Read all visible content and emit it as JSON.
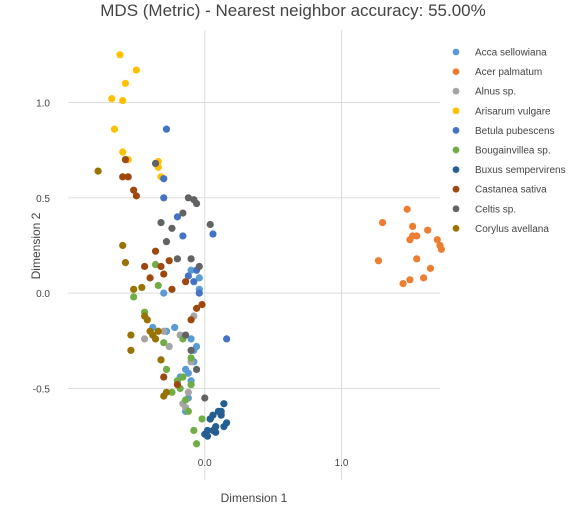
{
  "chart_data": {
    "type": "scatter",
    "title": "MDS (Metric) - Nearest neighbor accuracy: 55.00%",
    "xlabel": "Dimension 1",
    "ylabel": "Dimension 2",
    "xlim": [
      -1.0,
      1.72
    ],
    "ylim": [
      -0.98,
      1.38
    ],
    "xticks": [
      0.0,
      1.0
    ],
    "xtick_labels": [
      "0.0",
      "1.0"
    ],
    "yticks": [
      -0.5,
      0.0,
      0.5,
      1.0
    ],
    "ytick_labels": [
      "-0.5",
      "0.0",
      "0.5",
      "1.0"
    ],
    "grid": true,
    "legend_position": "right",
    "series": [
      {
        "name": "Acca sellowiana",
        "color": "#5b9bd5",
        "x": [
          -0.38,
          -0.32,
          -0.28,
          -0.22,
          -0.18,
          -0.14,
          -0.12,
          -0.1,
          -0.08,
          -0.06,
          -0.12,
          -0.14,
          -0.1,
          -0.08,
          -0.04,
          -0.1,
          -0.04,
          -0.3
        ],
        "y": [
          -0.18,
          -0.35,
          -0.2,
          -0.18,
          -0.44,
          -0.4,
          -0.42,
          -0.46,
          -0.36,
          -0.28,
          -0.55,
          -0.62,
          -0.24,
          -0.3,
          0.02,
          0.12,
          0.08,
          0.0
        ]
      },
      {
        "name": "Acer palmatum",
        "color": "#ed7d31",
        "x": [
          1.27,
          1.3,
          1.45,
          1.48,
          1.5,
          1.52,
          1.55,
          1.55,
          1.6,
          1.63,
          1.65,
          1.7,
          1.72,
          1.73,
          1.5,
          1.52
        ],
        "y": [
          0.17,
          0.37,
          0.05,
          0.44,
          0.28,
          0.35,
          0.3,
          0.18,
          0.08,
          0.33,
          0.13,
          0.28,
          0.25,
          0.23,
          0.07,
          0.3
        ]
      },
      {
        "name": "Alnus sp.",
        "color": "#a5a5a5",
        "x": [
          -0.44,
          -0.38,
          -0.3,
          -0.26,
          -0.2,
          -0.16,
          -0.14,
          -0.12,
          -0.1,
          -0.18,
          -0.08
        ],
        "y": [
          -0.24,
          -0.22,
          -0.2,
          -0.28,
          -0.46,
          -0.58,
          -0.6,
          -0.52,
          -0.36,
          -0.22,
          -0.12
        ]
      },
      {
        "name": "Arisarum vulgare",
        "color": "#ffc000",
        "x": [
          -0.68,
          -0.66,
          -0.62,
          -0.6,
          -0.58,
          -0.5,
          -0.6,
          -0.56,
          -0.34,
          -0.32,
          -0.34
        ],
        "y": [
          1.02,
          0.86,
          1.25,
          1.01,
          1.1,
          1.17,
          0.74,
          0.7,
          0.69,
          0.61,
          0.66
        ]
      },
      {
        "name": "Betula pubescens",
        "color": "#4472c4",
        "x": [
          -0.28,
          -0.3,
          -0.2,
          -0.16,
          -0.12,
          -0.08,
          -0.04,
          -0.06,
          0.06,
          0.16,
          -0.3
        ],
        "y": [
          0.86,
          0.5,
          0.4,
          0.3,
          0.09,
          0.06,
          0.0,
          0.12,
          0.31,
          -0.24,
          0.6
        ]
      },
      {
        "name": "Bougainvillea sp.",
        "color": "#70ad47",
        "x": [
          -0.36,
          -0.34,
          -0.3,
          -0.28,
          -0.24,
          -0.2,
          -0.18,
          -0.16,
          -0.14,
          -0.12,
          -0.1,
          -0.08,
          -0.06,
          -0.1,
          -0.02,
          -0.44,
          -0.16,
          -0.52
        ],
        "y": [
          0.15,
          0.04,
          -0.26,
          -0.4,
          -0.52,
          -0.46,
          -0.5,
          -0.44,
          -0.56,
          -0.62,
          -0.48,
          -0.72,
          -0.79,
          -0.34,
          -0.66,
          -0.1,
          -0.24,
          -0.02
        ]
      },
      {
        "name": "Buxus sempervirens",
        "color": "#255e91",
        "x": [
          0.0,
          0.02,
          0.04,
          0.06,
          0.08,
          0.1,
          0.12,
          0.14,
          0.16,
          0.04,
          0.06,
          0.08,
          0.12,
          0.14,
          0.02
        ],
        "y": [
          -0.74,
          -0.72,
          -0.66,
          -0.64,
          -0.7,
          -0.62,
          -0.64,
          -0.58,
          -0.68,
          -0.66,
          -0.72,
          -0.73,
          -0.62,
          -0.7,
          -0.75
        ]
      },
      {
        "name": "Castanea sativa",
        "color": "#9e480e",
        "x": [
          -0.6,
          -0.58,
          -0.56,
          -0.52,
          -0.5,
          -0.44,
          -0.4,
          -0.36,
          -0.32,
          -0.3,
          -0.26,
          -0.24,
          -0.2,
          -0.14,
          -0.1,
          -0.06,
          -0.02,
          -0.3
        ],
        "y": [
          0.61,
          0.7,
          0.61,
          0.54,
          0.51,
          0.14,
          0.08,
          0.22,
          0.14,
          0.1,
          0.17,
          0.02,
          -0.48,
          0.06,
          -0.14,
          -0.08,
          -0.06,
          -0.44
        ]
      },
      {
        "name": "Celtis sp.",
        "color": "#636363",
        "x": [
          -0.36,
          -0.32,
          -0.28,
          -0.24,
          -0.2,
          -0.16,
          -0.12,
          -0.08,
          -0.06,
          -0.04,
          -0.1,
          -0.06,
          0.0,
          0.04,
          -0.14,
          -0.1
        ],
        "y": [
          0.68,
          0.37,
          0.27,
          0.34,
          0.18,
          0.42,
          0.5,
          0.49,
          0.47,
          0.14,
          0.18,
          -0.4,
          -0.55,
          0.36,
          -0.22,
          -0.3
        ]
      },
      {
        "name": "Corylus avellana",
        "color": "#997300",
        "x": [
          -0.78,
          -0.6,
          -0.58,
          -0.54,
          -0.52,
          -0.46,
          -0.44,
          -0.42,
          -0.4,
          -0.38,
          -0.36,
          -0.34,
          -0.32,
          -0.3,
          -0.28,
          -0.54
        ],
        "y": [
          0.64,
          0.25,
          0.16,
          -0.22,
          0.02,
          0.03,
          -0.12,
          -0.14,
          -0.2,
          -0.22,
          -0.24,
          -0.2,
          -0.35,
          -0.54,
          -0.52,
          -0.3
        ]
      }
    ]
  }
}
